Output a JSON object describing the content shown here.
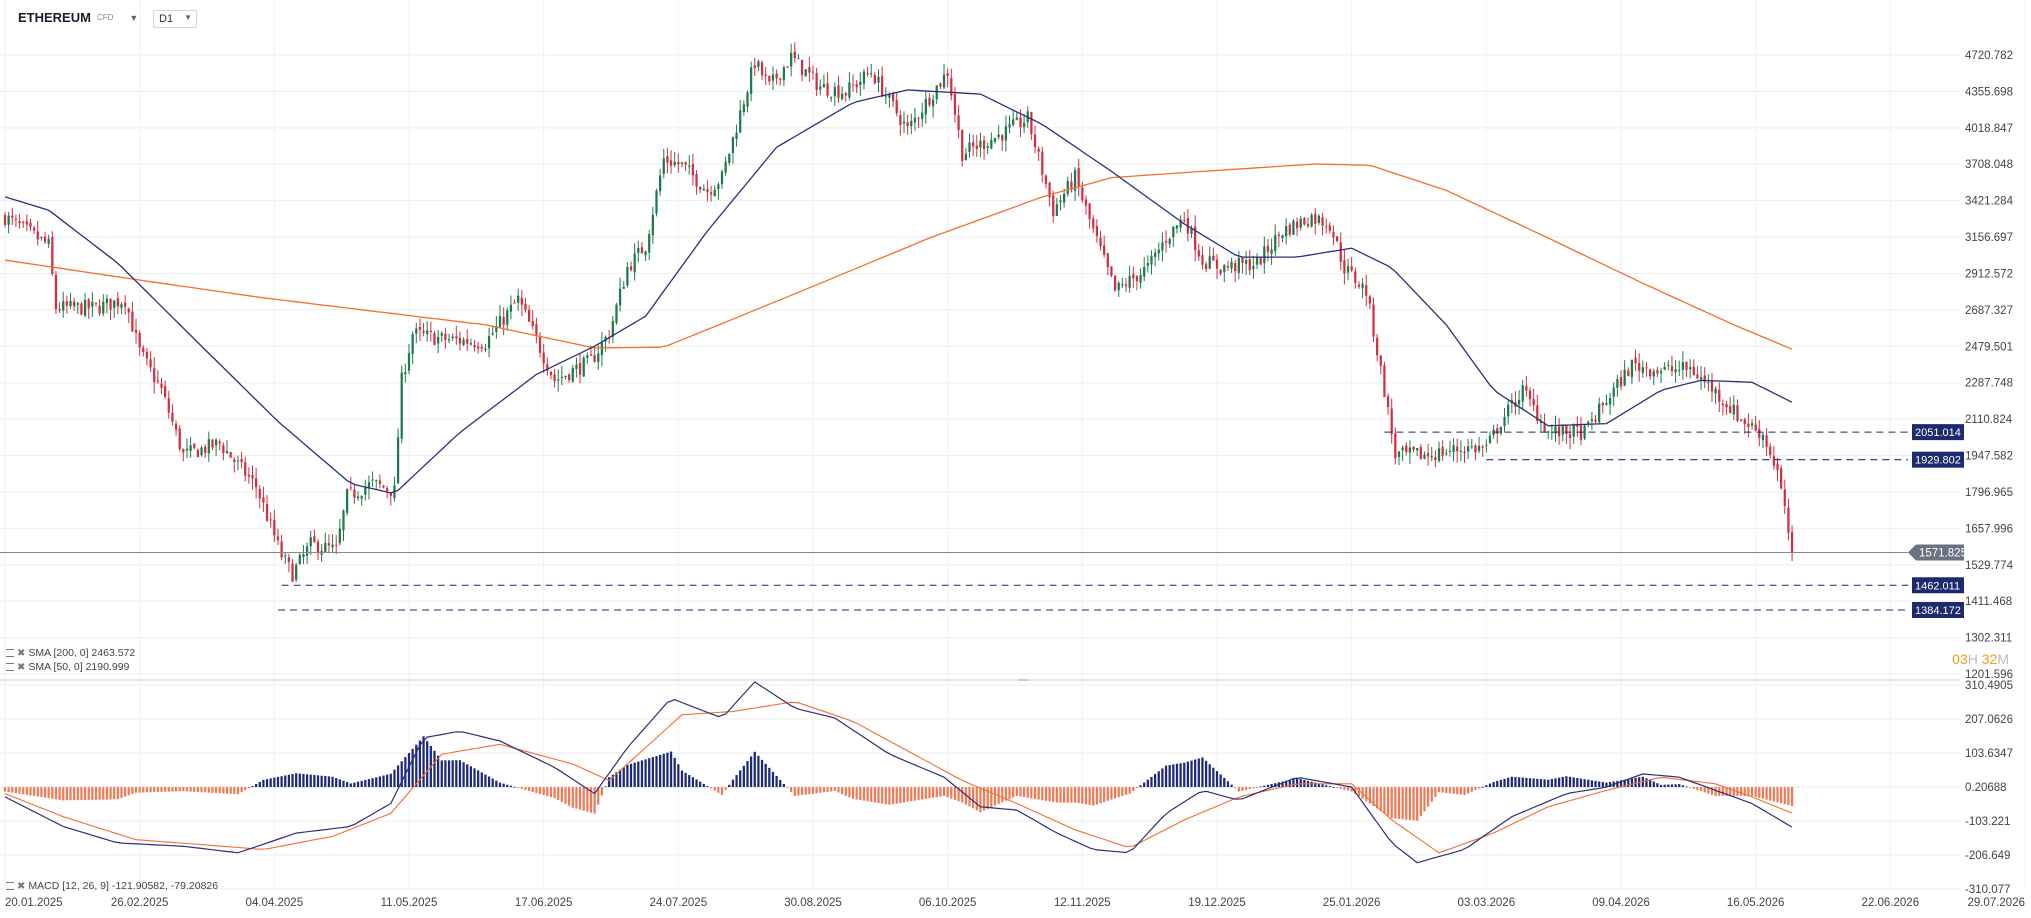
{
  "header": {
    "symbol": "ETHEREUM",
    "symbol_sub": "CFD",
    "timeframe": "D1"
  },
  "timer": {
    "hours": "03",
    "h_label": "H",
    "minutes": "32",
    "m_label": "M"
  },
  "legend": {
    "sma200": "SMA [200, 0] 2463.572",
    "sma50": "SMA [50, 0] 2190.999",
    "macd": "MACD [12, 26, 9] -121.90582, -79.20826"
  },
  "colors": {
    "up": "#1f7a4d",
    "down": "#d22f40",
    "sma200": "#f07030",
    "sma50": "#2b2f7a",
    "hist_pos": "#1e2a78",
    "hist_neg": "#f07a55",
    "macd": "#2b2f7a",
    "signal": "#f07030",
    "level_box": "#1e2a6e",
    "price_box": "#6b7280"
  },
  "chart_data": [
    {
      "type": "candlestick",
      "name": "price",
      "ylim": [
        1201.596,
        4900
      ],
      "scale": "log",
      "y_ticks": [
        "4720.782",
        "4355.698",
        "4018.847",
        "3708.048",
        "3421.284",
        "3156.697",
        "2912.572",
        "2687.327",
        "2479.501",
        "2287.748",
        "2110.824",
        "1947.582",
        "1796.965",
        "1657.996",
        "1529.774",
        "1411.468",
        "1302.311",
        "1201.596"
      ],
      "x_ticks": [
        "20.01.2025",
        "26.02.2025",
        "04.04.2025",
        "11.05.2025",
        "17.06.2025",
        "24.07.2025",
        "30.08.2025",
        "06.10.2025",
        "12.11.2025",
        "19.12.2025",
        "25.01.2026",
        "03.03.2026",
        "09.04.2026",
        "16.05.2026",
        "22.06.2026",
        "29.07.2026"
      ],
      "x_range": [
        "2025-01-20",
        "2026-07-29"
      ],
      "last_date": "2026-05-26",
      "close_path": [
        [
          "2025-01-20",
          3300
        ],
        [
          "2025-02-01",
          3100
        ],
        [
          "2025-02-03",
          2700
        ],
        [
          "2025-02-14",
          2700
        ],
        [
          "2025-02-22",
          2750
        ],
        [
          "2025-02-26",
          2450
        ],
        [
          "2025-03-04",
          2250
        ],
        [
          "2025-03-10",
          1950
        ],
        [
          "2025-03-20",
          2000
        ],
        [
          "2025-03-30",
          1820
        ],
        [
          "2025-04-06",
          1560
        ],
        [
          "2025-04-09",
          1500
        ],
        [
          "2025-04-14",
          1600
        ],
        [
          "2025-04-21",
          1580
        ],
        [
          "2025-04-24",
          1780
        ],
        [
          "2025-05-01",
          1830
        ],
        [
          "2025-05-07",
          1800
        ],
        [
          "2025-05-09",
          2300
        ],
        [
          "2025-05-12",
          2550
        ],
        [
          "2025-05-20",
          2520
        ],
        [
          "2025-06-01",
          2500
        ],
        [
          "2025-06-10",
          2750
        ],
        [
          "2025-06-20",
          2300
        ],
        [
          "2025-06-30",
          2400
        ],
        [
          "2025-07-05",
          2550
        ],
        [
          "2025-07-10",
          2950
        ],
        [
          "2025-07-15",
          3100
        ],
        [
          "2025-07-20",
          3750
        ],
        [
          "2025-07-25",
          3700
        ],
        [
          "2025-08-01",
          3500
        ],
        [
          "2025-08-05",
          3600
        ],
        [
          "2025-08-10",
          4150
        ],
        [
          "2025-08-14",
          4650
        ],
        [
          "2025-08-18",
          4400
        ],
        [
          "2025-08-24",
          4700
        ],
        [
          "2025-09-01",
          4400
        ],
        [
          "2025-09-08",
          4350
        ],
        [
          "2025-09-15",
          4550
        ],
        [
          "2025-09-25",
          4000
        ],
        [
          "2025-10-01",
          4300
        ],
        [
          "2025-10-06",
          4550
        ],
        [
          "2025-10-10",
          3800
        ],
        [
          "2025-10-20",
          3950
        ],
        [
          "2025-10-28",
          4100
        ],
        [
          "2025-11-04",
          3350
        ],
        [
          "2025-11-10",
          3600
        ],
        [
          "2025-11-15",
          3200
        ],
        [
          "2025-11-21",
          2800
        ],
        [
          "2025-11-30",
          2950
        ],
        [
          "2025-12-05",
          3150
        ],
        [
          "2025-12-10",
          3300
        ],
        [
          "2025-12-15",
          3000
        ],
        [
          "2025-12-20",
          2950
        ],
        [
          "2025-12-30",
          2980
        ],
        [
          "2026-01-06",
          3200
        ],
        [
          "2026-01-14",
          3300
        ],
        [
          "2026-01-19",
          3250
        ],
        [
          "2026-01-23",
          2950
        ],
        [
          "2026-01-29",
          2800
        ],
        [
          "2026-02-03",
          2250
        ],
        [
          "2026-02-06",
          1950
        ],
        [
          "2026-02-15",
          1950
        ],
        [
          "2026-02-25",
          1980
        ],
        [
          "2026-03-03",
          1980
        ],
        [
          "2026-03-07",
          2100
        ],
        [
          "2026-03-13",
          2250
        ],
        [
          "2026-03-20",
          2050
        ],
        [
          "2026-03-30",
          2050
        ],
        [
          "2026-04-05",
          2200
        ],
        [
          "2026-04-12",
          2380
        ],
        [
          "2026-04-20",
          2350
        ],
        [
          "2026-04-28",
          2360
        ],
        [
          "2026-05-04",
          2260
        ],
        [
          "2026-05-12",
          2110
        ],
        [
          "2026-05-18",
          2040
        ],
        [
          "2026-05-22",
          1880
        ],
        [
          "2026-05-26",
          1571.825
        ]
      ],
      "current_price": "1571.825",
      "levels": [
        {
          "value": 2051.014,
          "label": "2051.014",
          "from": "2026-02-03"
        },
        {
          "value": 1929.802,
          "label": "1929.802",
          "from": "2026-03-03"
        },
        {
          "value": 1462.011,
          "label": "1462.011",
          "from": "2025-04-06"
        },
        {
          "value": 1384.172,
          "label": "1384.172",
          "from": "2025-04-05"
        }
      ],
      "sma200_path": [
        [
          "2025-01-20",
          3000
        ],
        [
          "2025-03-01",
          2860
        ],
        [
          "2025-04-01",
          2760
        ],
        [
          "2025-05-01",
          2680
        ],
        [
          "2025-06-01",
          2600
        ],
        [
          "2025-07-01",
          2470
        ],
        [
          "2025-07-20",
          2475
        ],
        [
          "2025-08-10",
          2650
        ],
        [
          "2025-09-01",
          2850
        ],
        [
          "2025-10-01",
          3150
        ],
        [
          "2025-11-01",
          3450
        ],
        [
          "2025-11-20",
          3600
        ],
        [
          "2025-12-15",
          3650
        ],
        [
          "2026-01-15",
          3710
        ],
        [
          "2026-01-30",
          3700
        ],
        [
          "2026-02-20",
          3500
        ],
        [
          "2026-03-20",
          3150
        ],
        [
          "2026-04-15",
          2850
        ],
        [
          "2026-05-10",
          2600
        ],
        [
          "2026-05-26",
          2463.572
        ]
      ],
      "sma50_path": [
        [
          "2025-01-20",
          3450
        ],
        [
          "2025-02-01",
          3350
        ],
        [
          "2025-02-20",
          2980
        ],
        [
          "2025-03-15",
          2480
        ],
        [
          "2025-04-05",
          2100
        ],
        [
          "2025-04-25",
          1830
        ],
        [
          "2025-05-07",
          1790
        ],
        [
          "2025-05-25",
          2050
        ],
        [
          "2025-06-15",
          2330
        ],
        [
          "2025-07-01",
          2480
        ],
        [
          "2025-07-15",
          2650
        ],
        [
          "2025-08-01",
          3200
        ],
        [
          "2025-08-20",
          3850
        ],
        [
          "2025-09-10",
          4250
        ],
        [
          "2025-09-25",
          4370
        ],
        [
          "2025-10-15",
          4330
        ],
        [
          "2025-11-01",
          4050
        ],
        [
          "2025-11-20",
          3650
        ],
        [
          "2025-12-10",
          3250
        ],
        [
          "2025-12-25",
          3020
        ],
        [
          "2026-01-10",
          3020
        ],
        [
          "2026-01-25",
          3080
        ],
        [
          "2026-02-05",
          2950
        ],
        [
          "2026-02-20",
          2600
        ],
        [
          "2026-03-05",
          2250
        ],
        [
          "2026-03-20",
          2080
        ],
        [
          "2026-04-05",
          2090
        ],
        [
          "2026-04-20",
          2250
        ],
        [
          "2026-05-01",
          2300
        ],
        [
          "2026-05-15",
          2290
        ],
        [
          "2026-05-26",
          2190.999
        ]
      ]
    },
    {
      "type": "macd",
      "name": "MACD",
      "ylim": [
        -310.077,
        310.4905
      ],
      "y_ticks": [
        "310.4905",
        "207.0626",
        "103.6347",
        "0.20688",
        "-103.221",
        "-206.649",
        "-310.077"
      ],
      "macd_path": [
        [
          "2025-01-20",
          -30
        ],
        [
          "2025-02-05",
          -120
        ],
        [
          "2025-02-20",
          -170
        ],
        [
          "2025-03-10",
          -180
        ],
        [
          "2025-03-25",
          -200
        ],
        [
          "2025-04-10",
          -140
        ],
        [
          "2025-04-25",
          -120
        ],
        [
          "2025-05-06",
          -50
        ],
        [
          "2025-05-15",
          150
        ],
        [
          "2025-05-25",
          170
        ],
        [
          "2025-06-05",
          140
        ],
        [
          "2025-06-20",
          60
        ],
        [
          "2025-07-01",
          -20
        ],
        [
          "2025-07-10",
          120
        ],
        [
          "2025-07-22",
          270
        ],
        [
          "2025-08-05",
          210
        ],
        [
          "2025-08-14",
          320
        ],
        [
          "2025-08-25",
          240
        ],
        [
          "2025-09-05",
          210
        ],
        [
          "2025-09-20",
          100
        ],
        [
          "2025-10-05",
          30
        ],
        [
          "2025-10-15",
          -60
        ],
        [
          "2025-10-25",
          -70
        ],
        [
          "2025-11-05",
          -140
        ],
        [
          "2025-11-15",
          -190
        ],
        [
          "2025-11-25",
          -200
        ],
        [
          "2025-12-05",
          -80
        ],
        [
          "2025-12-15",
          -10
        ],
        [
          "2025-12-25",
          -40
        ],
        [
          "2026-01-10",
          30
        ],
        [
          "2026-01-25",
          0
        ],
        [
          "2026-02-05",
          -170
        ],
        [
          "2026-02-12",
          -230
        ],
        [
          "2026-02-25",
          -190
        ],
        [
          "2026-03-10",
          -90
        ],
        [
          "2026-03-25",
          -20
        ],
        [
          "2026-04-05",
          0
        ],
        [
          "2026-04-15",
          40
        ],
        [
          "2026-04-25",
          30
        ],
        [
          "2026-05-05",
          -10
        ],
        [
          "2026-05-15",
          -50
        ],
        [
          "2026-05-26",
          -121.90582
        ]
      ],
      "signal_path": [
        [
          "2025-01-20",
          -20
        ],
        [
          "2025-02-05",
          -90
        ],
        [
          "2025-02-25",
          -160
        ],
        [
          "2025-03-15",
          -175
        ],
        [
          "2025-04-01",
          -190
        ],
        [
          "2025-04-20",
          -150
        ],
        [
          "2025-05-06",
          -80
        ],
        [
          "2025-05-20",
          100
        ],
        [
          "2025-06-05",
          130
        ],
        [
          "2025-06-25",
          70
        ],
        [
          "2025-07-05",
          20
        ],
        [
          "2025-07-25",
          220
        ],
        [
          "2025-08-08",
          230
        ],
        [
          "2025-08-25",
          260
        ],
        [
          "2025-09-10",
          200
        ],
        [
          "2025-09-25",
          110
        ],
        [
          "2025-10-10",
          20
        ],
        [
          "2025-10-25",
          -50
        ],
        [
          "2025-11-10",
          -130
        ],
        [
          "2025-11-25",
          -185
        ],
        [
          "2025-12-10",
          -100
        ],
        [
          "2025-12-25",
          -30
        ],
        [
          "2026-01-10",
          10
        ],
        [
          "2026-01-25",
          10
        ],
        [
          "2026-02-05",
          -100
        ],
        [
          "2026-02-18",
          -200
        ],
        [
          "2026-03-05",
          -140
        ],
        [
          "2026-03-20",
          -60
        ],
        [
          "2026-04-05",
          -10
        ],
        [
          "2026-04-20",
          30
        ],
        [
          "2026-05-05",
          10
        ],
        [
          "2026-05-15",
          -30
        ],
        [
          "2026-05-26",
          -79.20826
        ]
      ]
    }
  ]
}
